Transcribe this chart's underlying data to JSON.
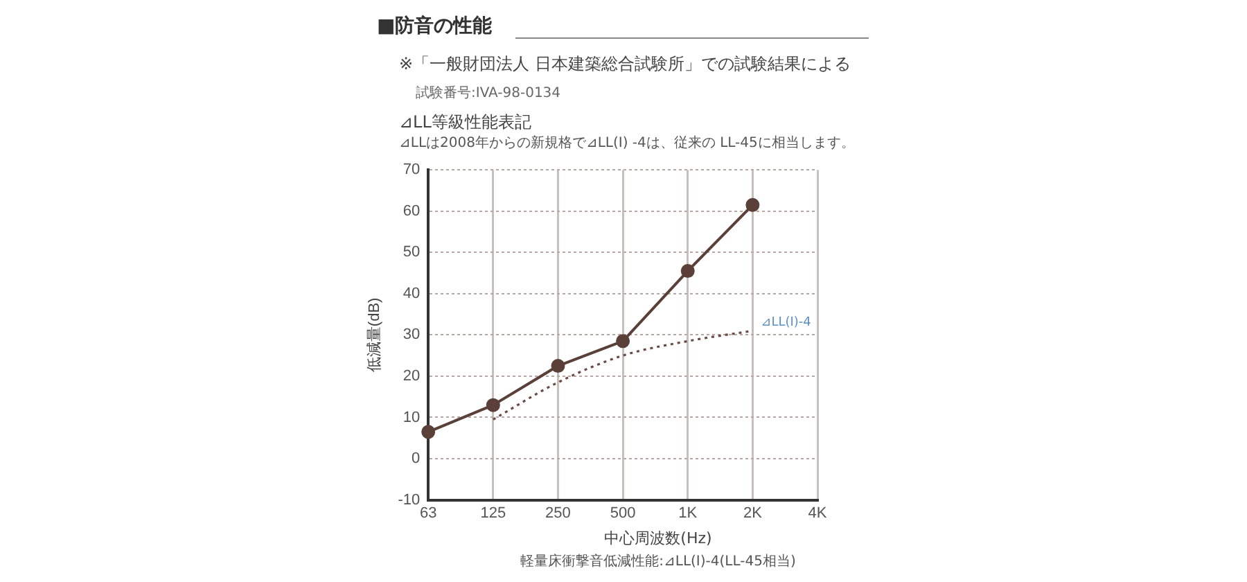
{
  "chart_data": {
    "type": "line",
    "title": "■防音の性能",
    "subtitle": "※「一般財団法人  日本建築総合試験所」での試験結果による",
    "annotations": [
      "試験番号:IVA-98-0134",
      "⊿LL等級性能表記",
      "⊿LLは2008年からの新規格で⊿LL(I) -4は、従来の LL-45に相当します。",
      "軽量床衝撃音低減性能:⊿LL(I)-4(LL-45相当)"
    ],
    "xlabel": "中心周波数(Hz)",
    "ylabel": "低減量(dB)",
    "categories": [
      "63",
      "125",
      "250",
      "500",
      "1K",
      "2K",
      "4K"
    ],
    "series": [
      {
        "color": "#5a4038",
        "marker": "circle",
        "line_style": "solid",
        "values": [
          6.5,
          13,
          22.5,
          28.5,
          45.5,
          61.5,
          null
        ]
      },
      {
        "name": "⊿LL(I)-4",
        "color": "#6a4a44",
        "marker": "none",
        "line_style": "dotted",
        "values": [
          null,
          9.5,
          18.5,
          25,
          28.5,
          31,
          null
        ]
      }
    ],
    "ylim": [
      -10,
      70
    ],
    "yticks": [
      -10,
      0,
      10,
      20,
      30,
      40,
      50,
      60,
      70
    ],
    "grid": true,
    "legend": false
  }
}
